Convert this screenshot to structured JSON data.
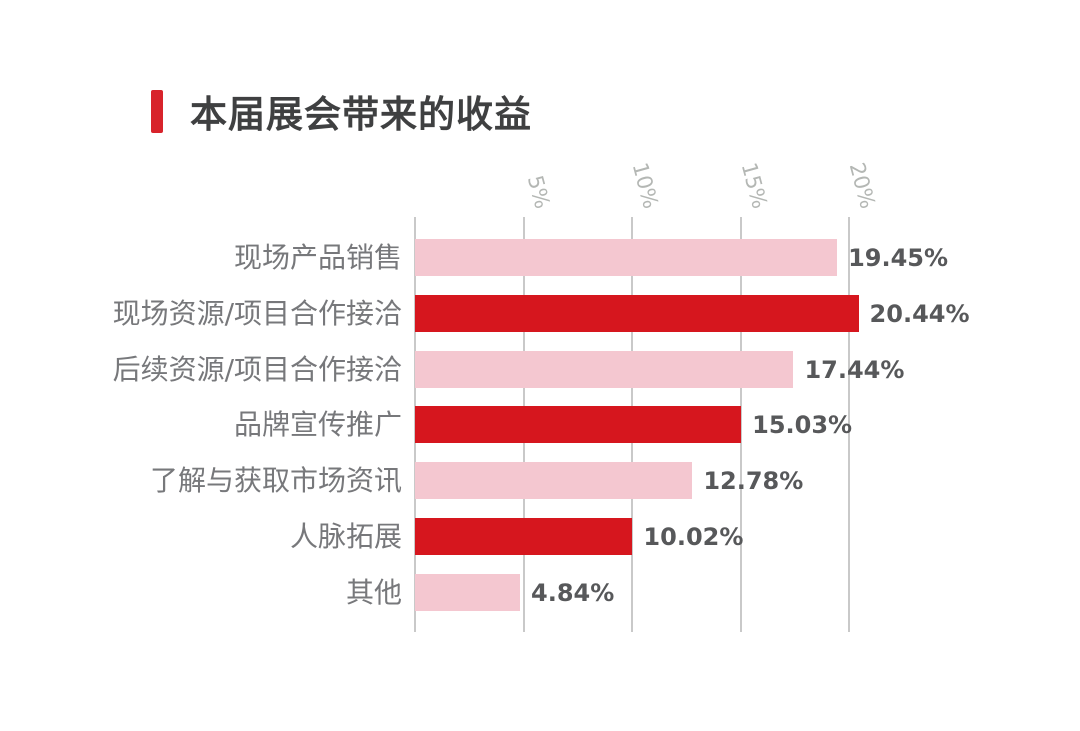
{
  "header": {
    "title": "本届展会带来的收益",
    "accent_color": "#d8232b"
  },
  "chart_data": {
    "type": "bar",
    "orientation": "horizontal",
    "title": "本届展会带来的收益",
    "xlabel": "",
    "ylabel": "",
    "categories": [
      "现场产品销售",
      "现场资源/项目合作接洽",
      "后续资源/项目合作接洽",
      "品牌宣传推广",
      "了解与获取市场资讯",
      "人脉拓展",
      "其他"
    ],
    "values": [
      19.45,
      20.44,
      17.44,
      15.03,
      12.78,
      10.02,
      4.84
    ],
    "value_labels": [
      "19.45%",
      "20.44%",
      "17.44%",
      "15.03%",
      "12.78%",
      "10.02%",
      "4.84%"
    ],
    "bar_colors": [
      "#f4c7d0",
      "#d6161e",
      "#f4c7d0",
      "#d6161e",
      "#f4c7d0",
      "#d6161e",
      "#f4c7d0"
    ],
    "xlim": [
      0,
      20
    ],
    "x_ticks": [
      5,
      10,
      15,
      20
    ],
    "x_tick_labels": [
      "5%",
      "10%",
      "15%",
      "20%"
    ],
    "grid": true,
    "gridline_color": "#c9c9c9",
    "tick_label_color": "#b4b7b4",
    "legend": "none"
  }
}
